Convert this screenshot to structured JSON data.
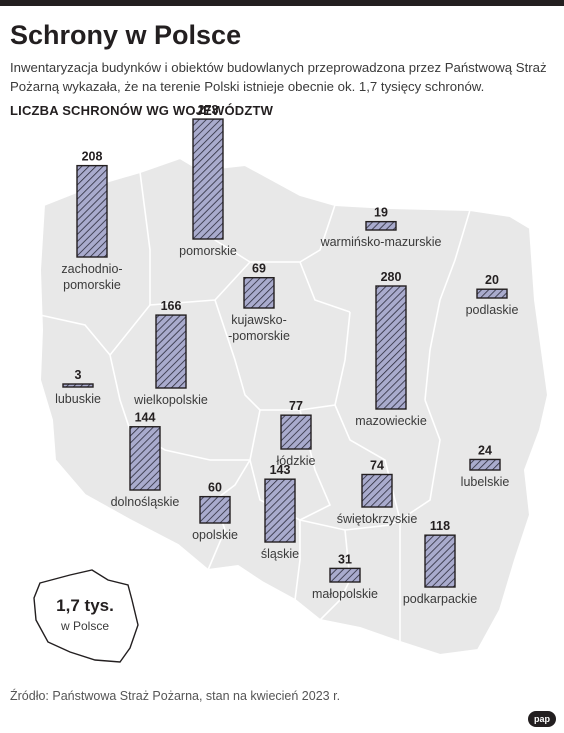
{
  "colors": {
    "accent": "#231f20",
    "bar_fill": "#a9abcd",
    "hatch": "#2a2a3a",
    "map_fill": "#e8e8e8",
    "border": "#ffffff"
  },
  "header": {
    "title": "Schrony w Polsce",
    "subtitle": "Inwentaryzacja budynków i obiektów budowlanych przeprowadzona przez Państwową Straż Pożarną wykazała, że na terenie Polski istnieje obecnie ok. 1,7 tysięcy schronów.",
    "section_label": "LICZBA SCHRONÓW WG WOJEWÓDZTW"
  },
  "chart_data": {
    "type": "bar",
    "title": "Schrony w Polsce",
    "subtitle": "LICZBA SCHRONÓW WG WOJEWÓDZTW",
    "categories": [
      "zachodniopomorskie",
      "pomorskie",
      "warmińsko-mazurskie",
      "kujawsko-pomorskie",
      "mazowieckie",
      "podlaskie",
      "lubuskie",
      "wielkopolskie",
      "łódzkie",
      "lubelskie",
      "dolnośląskie",
      "świętokrzyskie",
      "opolskie",
      "śląskie",
      "podkarpackie",
      "małopolskie"
    ],
    "values": [
      208,
      273,
      19,
      69,
      280,
      20,
      3,
      166,
      77,
      24,
      144,
      74,
      60,
      143,
      118,
      31
    ],
    "label_lines": [
      [
        "zachodnio-",
        "pomorskie"
      ],
      [
        "pomorskie"
      ],
      [
        "warmińsko-mazurskie"
      ],
      [
        "kujawsko-",
        "-pomorskie"
      ],
      [
        "mazowieckie"
      ],
      [
        "podlaskie"
      ],
      [
        "lubuskie"
      ],
      [
        "wielkopolskie"
      ],
      [
        "łódzkie"
      ],
      [
        "lubelskie"
      ],
      [
        "dolnośląskie"
      ],
      [
        "świętokrzyskie"
      ],
      [
        "opolskie"
      ],
      [
        "śląskie"
      ],
      [
        "podkarpackie"
      ],
      [
        "małopolskie"
      ]
    ],
    "ylim": [
      0,
      280
    ],
    "grid": false,
    "legend": "none"
  },
  "inset": {
    "value": "1,7 tys.",
    "caption": "w Polsce"
  },
  "footer": {
    "source": "Źródło: Państwowa Straż Pożarna, stan na kwiecień 2023 r.",
    "logo_icon": "pap-logo",
    "logo_text": "pap"
  }
}
